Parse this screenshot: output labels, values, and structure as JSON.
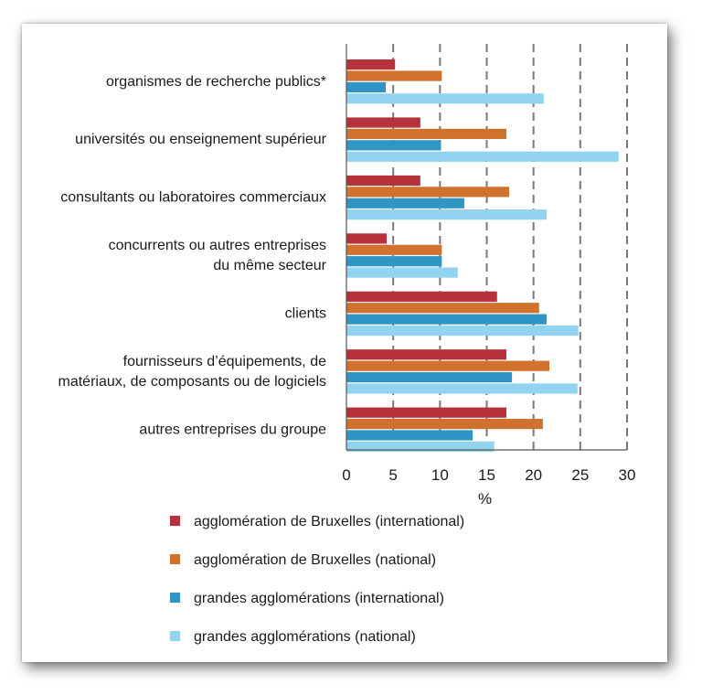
{
  "chart_data": {
    "type": "bar",
    "orientation": "horizontal",
    "categories": [
      [
        "organismes de recherche publics*"
      ],
      [
        "universités ou enseignement supérieur"
      ],
      [
        "consultants ou laboratoires commerciaux"
      ],
      [
        "concurrents ou autres entreprises",
        "du même secteur"
      ],
      [
        "clients"
      ],
      [
        "fournisseurs d’équipements, de",
        "matériaux, de composants ou de logiciels"
      ],
      [
        "autres entreprises du groupe"
      ]
    ],
    "series": [
      {
        "name": "agglomération de Bruxelles (international)",
        "color": "#b5323a",
        "values": [
          5.2,
          7.9,
          7.9,
          4.3,
          16.1,
          17.1,
          17.1
        ]
      },
      {
        "name": "agglomération de Bruxelles (national)",
        "color": "#d0722d",
        "values": [
          10.2,
          17.1,
          17.4,
          10.2,
          20.6,
          21.7,
          21.0
        ]
      },
      {
        "name": "grandes agglomérations (international)",
        "color": "#2f95c4",
        "values": [
          4.2,
          10.1,
          12.6,
          10.2,
          21.4,
          17.7,
          13.5
        ]
      },
      {
        "name": "grandes agglomérations (national)",
        "color": "#92d4ef",
        "values": [
          21.1,
          29.1,
          21.4,
          11.9,
          24.8,
          24.7,
          15.8
        ]
      }
    ],
    "xlabel": "%",
    "xlim": [
      0,
      30
    ],
    "xticks": [
      "0",
      "5",
      "10",
      "15",
      "20",
      "25",
      "30"
    ],
    "grid": "vertical dashed",
    "legend": "bottom"
  }
}
